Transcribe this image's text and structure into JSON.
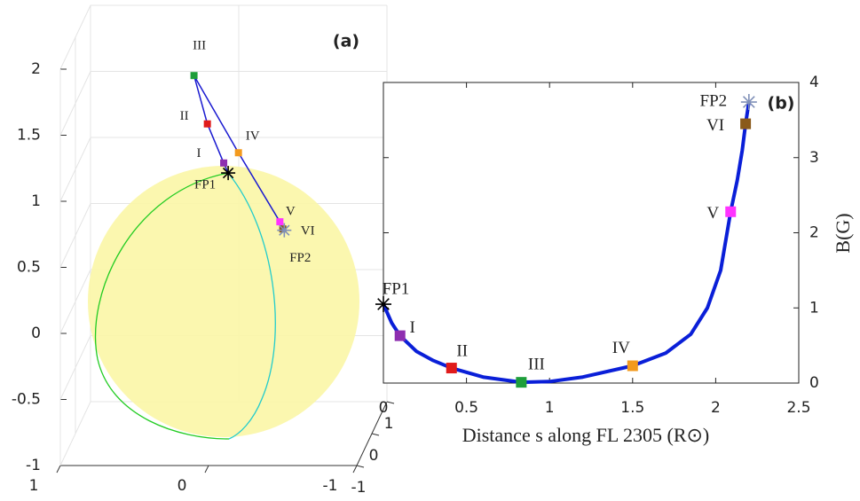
{
  "chart_data": [
    {
      "type": "line3d",
      "title": "(a)",
      "xlim": [
        -1,
        1
      ],
      "ylim": [
        -1,
        1
      ],
      "zlim": [
        -1,
        2
      ],
      "xticks": [
        1,
        0,
        -1
      ],
      "yticks": [
        1,
        0,
        -1
      ],
      "zticks": [
        2,
        1.5,
        1,
        0.5,
        0,
        -0.5,
        -1
      ],
      "line_color": "#1a1ad0",
      "sphere_color": "#fbf6a6",
      "points": [
        {
          "label": "FP1",
          "x": 0,
          "y": 0.3,
          "z": 0.9,
          "color": "#000000",
          "marker": "asterisk"
        },
        {
          "label": "I",
          "x": 0.02,
          "y": 0.2,
          "z": 1.0,
          "color": "#8e2fb0",
          "marker": "square"
        },
        {
          "label": "II",
          "x": 0.12,
          "y": 0.1,
          "z": 1.32,
          "color": "#e01b1b",
          "marker": "square"
        },
        {
          "label": "III",
          "x": 0.2,
          "y": 0,
          "z": 1.71,
          "color": "#1e9e3a",
          "marker": "square"
        },
        {
          "label": "IV",
          "x": -0.11,
          "y": -0.1,
          "z": 1.15,
          "color": "#f39a1e",
          "marker": "square"
        },
        {
          "label": "V",
          "x": -0.42,
          "y": -0.4,
          "z": 0.7,
          "color": "#ff33ff",
          "marker": "square"
        },
        {
          "label": "VI",
          "x": -0.45,
          "y": -0.5,
          "z": 0.67,
          "color": "#8a5a1a",
          "marker": "square"
        },
        {
          "label": "FP2",
          "x": -0.46,
          "y": -0.5,
          "z": 0.66,
          "color": "#8090b8",
          "marker": "asterisk"
        }
      ]
    },
    {
      "type": "line",
      "title": "(b)",
      "xlabel": "Distance s along FL 2305 (R⊙)",
      "ylabel": "B(G)",
      "xlim": [
        0,
        2.5
      ],
      "ylim": [
        0,
        4
      ],
      "xticks": [
        0,
        0.5,
        1,
        1.5,
        2,
        2.5
      ],
      "yticks": [
        0,
        1,
        2,
        3,
        4
      ],
      "color": "#0a1fd8",
      "x": [
        0,
        0.05,
        0.1,
        0.2,
        0.3,
        0.41,
        0.6,
        0.83,
        1.0,
        1.2,
        1.5,
        1.7,
        1.85,
        1.95,
        2.03,
        2.09,
        2.13,
        2.16,
        2.18,
        2.2
      ],
      "values": [
        1.05,
        0.8,
        0.63,
        0.42,
        0.3,
        0.2,
        0.08,
        0.01,
        0.02,
        0.08,
        0.23,
        0.4,
        0.65,
        1.0,
        1.5,
        2.28,
        2.7,
        3.1,
        3.45,
        3.74
      ],
      "points": [
        {
          "label": "FP1",
          "x": 0,
          "y": 1.05,
          "color": "#000000",
          "marker": "asterisk"
        },
        {
          "label": "I",
          "x": 0.1,
          "y": 0.63,
          "color": "#8e2fb0",
          "marker": "square"
        },
        {
          "label": "II",
          "x": 0.41,
          "y": 0.2,
          "color": "#e01b1b",
          "marker": "square"
        },
        {
          "label": "III",
          "x": 0.83,
          "y": 0.01,
          "color": "#1e9e3a",
          "marker": "square"
        },
        {
          "label": "IV",
          "x": 1.5,
          "y": 0.23,
          "color": "#f39a1e",
          "marker": "square"
        },
        {
          "label": "V",
          "x": 2.09,
          "y": 2.28,
          "color": "#ff33ff",
          "marker": "square"
        },
        {
          "label": "VI",
          "x": 2.18,
          "y": 3.45,
          "color": "#8a5a1a",
          "marker": "square"
        },
        {
          "label": "FP2",
          "x": 2.2,
          "y": 3.74,
          "color": "#8090b8",
          "marker": "asterisk"
        }
      ]
    }
  ]
}
